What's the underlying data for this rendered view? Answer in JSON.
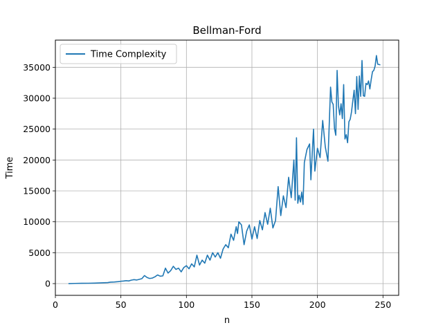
{
  "chart_data": {
    "type": "line",
    "title": "Bellman-Ford",
    "xlabel": "n",
    "ylabel": "Time",
    "xlim": [
      0,
      262
    ],
    "ylim": [
      -1900,
      39400
    ],
    "xticks": [
      0,
      50,
      100,
      150,
      200,
      250
    ],
    "yticks": [
      0,
      5000,
      10000,
      15000,
      20000,
      25000,
      30000,
      35000
    ],
    "grid": true,
    "legend_position": "top-left",
    "series": [
      {
        "name": "Time Complexity",
        "color": "#1f77b4",
        "points": [
          [
            10,
            0
          ],
          [
            15,
            30
          ],
          [
            20,
            50
          ],
          [
            25,
            60
          ],
          [
            30,
            80
          ],
          [
            35,
            120
          ],
          [
            40,
            160
          ],
          [
            42,
            230
          ],
          [
            45,
            260
          ],
          [
            48,
            320
          ],
          [
            50,
            380
          ],
          [
            52,
            420
          ],
          [
            54,
            470
          ],
          [
            56,
            430
          ],
          [
            58,
            560
          ],
          [
            60,
            640
          ],
          [
            62,
            580
          ],
          [
            64,
            690
          ],
          [
            66,
            800
          ],
          [
            68,
            1300
          ],
          [
            70,
            980
          ],
          [
            72,
            830
          ],
          [
            74,
            900
          ],
          [
            76,
            1100
          ],
          [
            78,
            1400
          ],
          [
            80,
            1200
          ],
          [
            82,
            1250
          ],
          [
            84,
            2500
          ],
          [
            86,
            1700
          ],
          [
            88,
            2100
          ],
          [
            90,
            2800
          ],
          [
            92,
            2300
          ],
          [
            94,
            2500
          ],
          [
            96,
            1900
          ],
          [
            98,
            2600
          ],
          [
            100,
            2900
          ],
          [
            102,
            2400
          ],
          [
            104,
            3200
          ],
          [
            106,
            2700
          ],
          [
            108,
            4600
          ],
          [
            110,
            3000
          ],
          [
            112,
            3800
          ],
          [
            114,
            3300
          ],
          [
            116,
            4600
          ],
          [
            118,
            3800
          ],
          [
            120,
            5000
          ],
          [
            122,
            4300
          ],
          [
            124,
            5000
          ],
          [
            126,
            4100
          ],
          [
            128,
            5600
          ],
          [
            130,
            6300
          ],
          [
            132,
            5800
          ],
          [
            134,
            8000
          ],
          [
            136,
            7000
          ],
          [
            138,
            9200
          ],
          [
            139,
            8100
          ],
          [
            140,
            10000
          ],
          [
            142,
            9500
          ],
          [
            144,
            6300
          ],
          [
            146,
            8500
          ],
          [
            148,
            9500
          ],
          [
            150,
            7200
          ],
          [
            152,
            9200
          ],
          [
            154,
            7300
          ],
          [
            156,
            10200
          ],
          [
            158,
            8700
          ],
          [
            160,
            11500
          ],
          [
            162,
            9600
          ],
          [
            164,
            12200
          ],
          [
            166,
            9000
          ],
          [
            168,
            10200
          ],
          [
            170,
            15700
          ],
          [
            172,
            11000
          ],
          [
            174,
            14200
          ],
          [
            176,
            12300
          ],
          [
            178,
            17200
          ],
          [
            180,
            13900
          ],
          [
            182,
            20000
          ],
          [
            183,
            13500
          ],
          [
            184,
            23600
          ],
          [
            185,
            13000
          ],
          [
            186,
            14300
          ],
          [
            187,
            13200
          ],
          [
            188,
            14800
          ],
          [
            189,
            12800
          ],
          [
            190,
            19600
          ],
          [
            192,
            21700
          ],
          [
            194,
            22600
          ],
          [
            195,
            16800
          ],
          [
            196,
            21000
          ],
          [
            197,
            25000
          ],
          [
            198,
            18200
          ],
          [
            200,
            21900
          ],
          [
            202,
            20400
          ],
          [
            204,
            26400
          ],
          [
            206,
            22100
          ],
          [
            208,
            19800
          ],
          [
            210,
            31800
          ],
          [
            211,
            29400
          ],
          [
            212,
            29000
          ],
          [
            213,
            25100
          ],
          [
            214,
            24000
          ],
          [
            215,
            34500
          ],
          [
            216,
            28800
          ],
          [
            217,
            27300
          ],
          [
            218,
            29100
          ],
          [
            219,
            26700
          ],
          [
            220,
            32200
          ],
          [
            221,
            23400
          ],
          [
            222,
            24100
          ],
          [
            223,
            22800
          ],
          [
            224,
            26200
          ],
          [
            225,
            26600
          ],
          [
            226,
            27800
          ],
          [
            227,
            29600
          ],
          [
            228,
            31300
          ],
          [
            229,
            27500
          ],
          [
            230,
            33500
          ],
          [
            231,
            28200
          ],
          [
            232,
            33600
          ],
          [
            233,
            30300
          ],
          [
            234,
            36100
          ],
          [
            235,
            30400
          ],
          [
            236,
            30300
          ],
          [
            237,
            32400
          ],
          [
            238,
            32200
          ],
          [
            239,
            32800
          ],
          [
            240,
            31500
          ],
          [
            241,
            33000
          ],
          [
            242,
            34300
          ],
          [
            243,
            34500
          ],
          [
            244,
            35200
          ],
          [
            245,
            36900
          ],
          [
            246,
            35500
          ],
          [
            248,
            35400
          ]
        ]
      }
    ]
  }
}
